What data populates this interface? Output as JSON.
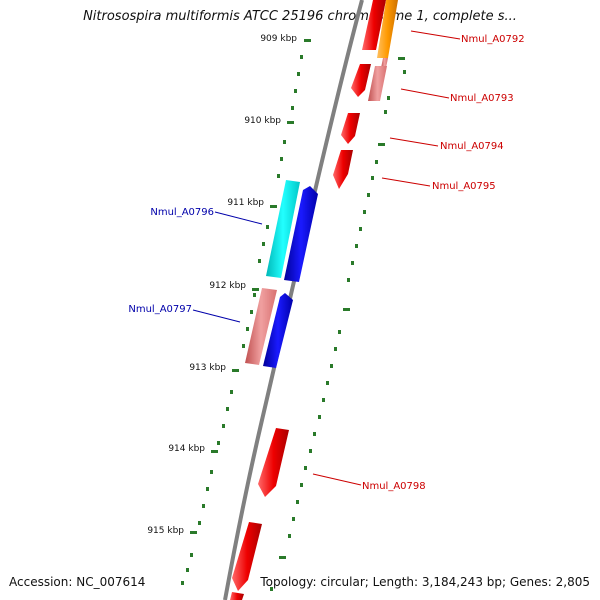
{
  "title": "Nitrosospira multiformis ATCC 25196 chromosome 1, complete s...",
  "footer": {
    "accession": "Accession: NC_007614",
    "topology": "Topology: circular; Length: 3,184,243 bp; Genes: 2,805"
  },
  "ticks": [
    "909 kbp",
    "910 kbp",
    "911 kbp",
    "912 kbp",
    "913 kbp",
    "914 kbp",
    "915 kbp"
  ],
  "gene_labels": {
    "forward": [
      "Nmul_A0792",
      "Nmul_A0793",
      "Nmul_A0794",
      "Nmul_A0795",
      "Nmul_A0798"
    ],
    "reverse": [
      "Nmul_A0796",
      "Nmul_A0797"
    ]
  },
  "colors": {
    "forward_label": "#cc0000",
    "reverse_label": "#0000aa",
    "gene_red": "#ee0000",
    "gene_orange": "#ff9900",
    "gene_pink": "#e88080",
    "gene_cyan": "#00e5e5",
    "gene_blue": "#0000ee",
    "backbone": "#808080",
    "tick": "#2a7a2a"
  }
}
